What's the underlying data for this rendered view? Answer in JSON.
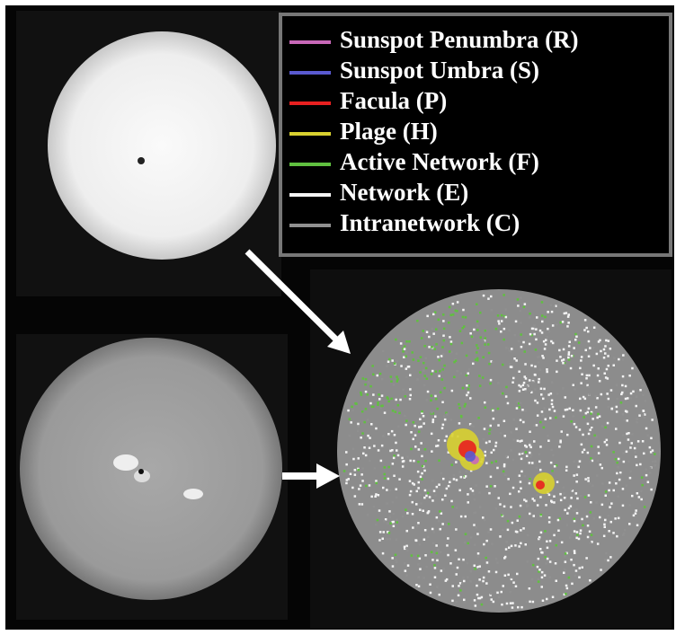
{
  "legend": {
    "items": [
      {
        "label": "Sunspot Penumbra (R)",
        "color": "#c868b8"
      },
      {
        "label": "Sunspot Umbra (S)",
        "color": "#5a5ad0"
      },
      {
        "label": "Facula (P)",
        "color": "#e82020"
      },
      {
        "label": "Plage (H)",
        "color": "#d8d030"
      },
      {
        "label": "Active Network (F)",
        "color": "#60c040"
      },
      {
        "label": "Network (E)",
        "color": "#f4f4f4"
      },
      {
        "label": "Intranetwork (C)",
        "color": "#909090"
      }
    ]
  }
}
